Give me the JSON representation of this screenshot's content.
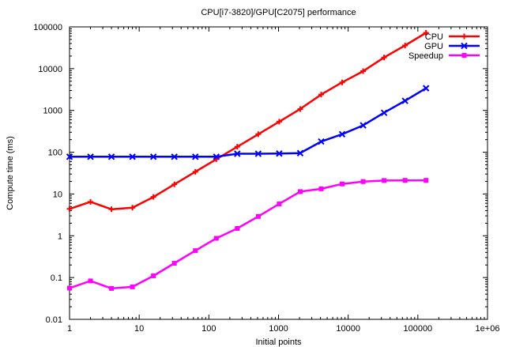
{
  "chart_data": {
    "type": "line",
    "title": "CPU[i7-3820]/GPU[C2075] performance",
    "xlabel": "Initial points",
    "ylabel": "Compute time (ms)",
    "x_scale": "log",
    "y_scale": "log",
    "xlim": [
      1,
      1000000
    ],
    "ylim": [
      0.01,
      100000
    ],
    "x_ticks": [
      1,
      10,
      100,
      1000,
      10000,
      100000,
      1000000
    ],
    "x_tick_labels": [
      "1",
      "10",
      "100",
      "1000",
      "10000",
      "100000",
      "1e+06"
    ],
    "y_ticks": [
      0.01,
      0.1,
      1,
      10,
      100,
      1000,
      10000,
      100000
    ],
    "y_tick_labels": [
      "0.01",
      "0.1",
      "1",
      "10",
      "100",
      "1000",
      "10000",
      "100000"
    ],
    "grid": false,
    "legend_position": "top-right",
    "x": [
      1,
      2,
      4,
      8,
      16,
      32,
      64,
      128,
      256,
      512,
      1024,
      2048,
      4096,
      8192,
      16384,
      32768,
      65536,
      131072
    ],
    "series": [
      {
        "name": "CPU",
        "color": "#ff0000",
        "marker": "plus",
        "values": [
          4.4,
          6.5,
          4.3,
          4.7,
          8.5,
          17,
          34,
          68,
          135,
          270,
          540,
          1080,
          2400,
          4700,
          8700,
          18500,
          36000,
          72000
        ]
      },
      {
        "name": "GPU",
        "color": "#0000ff",
        "marker": "x",
        "values": [
          78,
          78,
          78,
          78,
          78,
          78,
          78,
          78,
          92,
          92,
          93,
          95,
          180,
          270,
          440,
          880,
          1700,
          3400
        ]
      },
      {
        "name": "Speedup",
        "color": "#ff00ff",
        "marker": "square",
        "values": [
          0.056,
          0.083,
          0.055,
          0.06,
          0.11,
          0.22,
          0.44,
          0.87,
          1.5,
          2.9,
          5.8,
          11.4,
          13.3,
          17.4,
          19.8,
          21,
          21.2,
          21.2
        ]
      }
    ]
  }
}
